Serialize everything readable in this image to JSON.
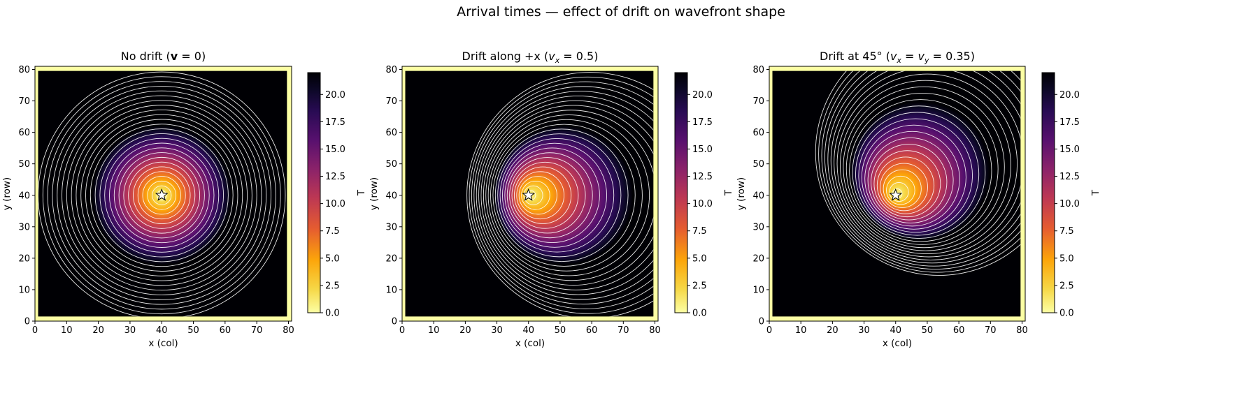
{
  "figure": {
    "suptitle": "Arrival times — effect of drift on wavefront shape"
  },
  "chart_data": [
    {
      "type": "heatmap",
      "title_parts": [
        "No drift (",
        "v",
        " = 0)"
      ],
      "xlabel": "x (col)",
      "ylabel": "y (row)",
      "xlim": [
        0,
        81
      ],
      "ylim": [
        0,
        81
      ],
      "xticks": [
        0,
        10,
        20,
        30,
        40,
        50,
        60,
        70,
        80
      ],
      "yticks": [
        0,
        10,
        20,
        30,
        40,
        50,
        60,
        70,
        80
      ],
      "source": {
        "x": 40,
        "y": 40,
        "marker": "star"
      },
      "drift": {
        "vx": 0,
        "vy": 0
      },
      "colorbar": {
        "label": "T",
        "range": [
          0,
          22
        ],
        "ticks": [
          "0.0",
          "2.5",
          "5.0",
          "7.5",
          "10.0",
          "12.5",
          "15.0",
          "17.5",
          "20.0"
        ],
        "colormap": "inferno_r"
      },
      "contour_interval": 1.5,
      "contour_color": "#ffffff"
    },
    {
      "type": "heatmap",
      "title_parts": [
        "Drift along +x (",
        "v",
        "x",
        " = 0.5)"
      ],
      "xlabel": "x (col)",
      "ylabel": "y (row)",
      "xlim": [
        0,
        81
      ],
      "ylim": [
        0,
        81
      ],
      "xticks": [
        0,
        10,
        20,
        30,
        40,
        50,
        60,
        70,
        80
      ],
      "yticks": [
        0,
        10,
        20,
        30,
        40,
        50,
        60,
        70,
        80
      ],
      "source": {
        "x": 40,
        "y": 40,
        "marker": "star"
      },
      "drift": {
        "vx": 0.5,
        "vy": 0
      },
      "colorbar": {
        "label": "T",
        "range": [
          0,
          22
        ],
        "ticks": [
          "0.0",
          "2.5",
          "5.0",
          "7.5",
          "10.0",
          "12.5",
          "15.0",
          "17.5",
          "20.0"
        ],
        "colormap": "inferno_r"
      },
      "contour_interval": 1.5,
      "contour_color": "#ffffff"
    },
    {
      "type": "heatmap",
      "title_parts": [
        "Drift at 45° (",
        "v",
        "x",
        " = ",
        "v",
        "y",
        " = 0.35)"
      ],
      "xlabel": "x (col)",
      "ylabel": "y (row)",
      "xlim": [
        0,
        81
      ],
      "ylim": [
        0,
        81
      ],
      "xticks": [
        0,
        10,
        20,
        30,
        40,
        50,
        60,
        70,
        80
      ],
      "yticks": [
        0,
        10,
        20,
        30,
        40,
        50,
        60,
        70,
        80
      ],
      "source": {
        "x": 40,
        "y": 40,
        "marker": "star"
      },
      "drift": {
        "vx": 0.35,
        "vy": 0.35
      },
      "colorbar": {
        "label": "T",
        "range": [
          0,
          22
        ],
        "ticks": [
          "0.0",
          "2.5",
          "5.0",
          "7.5",
          "10.0",
          "12.5",
          "15.0",
          "17.5",
          "20.0"
        ],
        "colormap": "inferno_r"
      },
      "contour_interval": 1.5,
      "contour_color": "#ffffff"
    }
  ]
}
